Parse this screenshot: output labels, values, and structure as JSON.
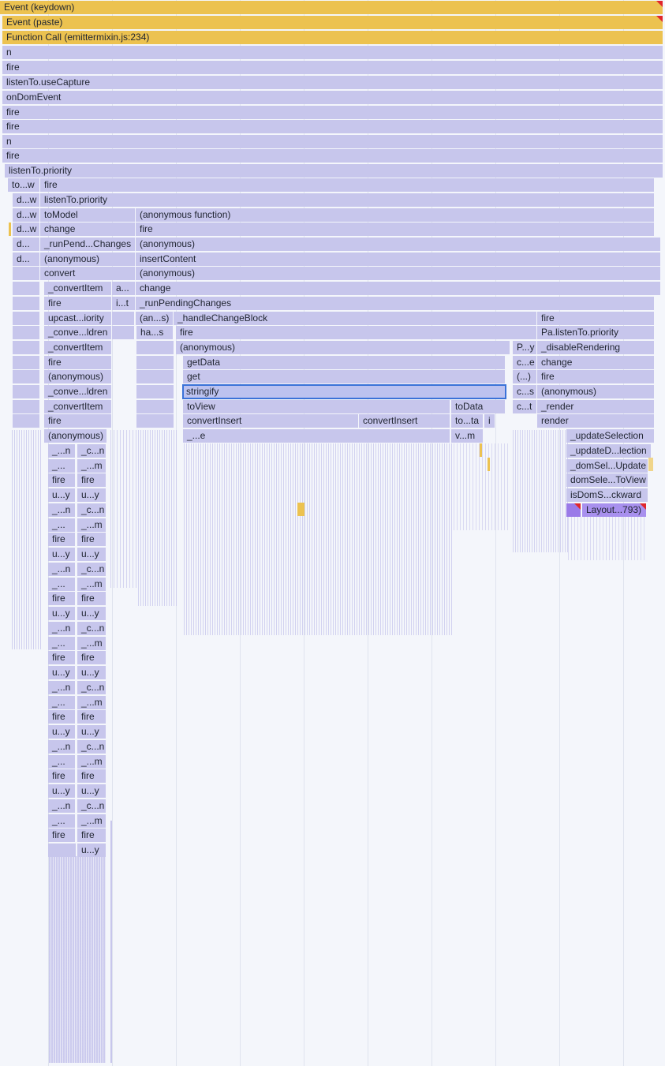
{
  "flame": {
    "events": {
      "keydown": "Event (keydown)",
      "paste": "Event (paste)",
      "function_call": "Function Call (emittermixin.js:234)"
    },
    "rows": {
      "r3": "n",
      "r4": "fire",
      "r5": "listenTo.useCapture",
      "r6": "onDomEvent",
      "r7": "fire",
      "r8": "fire",
      "r9": "n",
      "r10": "fire",
      "r11": "listenTo.priority"
    },
    "c12": {
      "tow": "to...w",
      "fire": "fire"
    },
    "c13": {
      "dw": "d...w",
      "ltp": "listenTo.priority"
    },
    "c14": {
      "dw": "d...w",
      "tomodel": "toModel",
      "anonfn": "(anonymous function)"
    },
    "c15": {
      "dw": "d...w",
      "change": "change",
      "fire": "fire"
    },
    "c16": {
      "d": "d...",
      "runpend": "_runPend...Changes",
      "anon": "(anonymous)"
    },
    "c17": {
      "d": "d...",
      "anon": "(anonymous)",
      "insert": "insertContent"
    },
    "c18": {
      "convert": "convert",
      "anon": "(anonymous)"
    },
    "c19": {
      "convitem": "_convertItem",
      "a": "a...",
      "change": "change"
    },
    "c20": {
      "fire": "fire",
      "it": "i...t",
      "runpending": "_runPendingChanges"
    },
    "c21": {
      "upcast": "upcast...iority",
      "ans": "(an...s)",
      "handle": "_handleChangeBlock",
      "fire": "fire"
    },
    "c22": {
      "convc": "_conve...ldren",
      "has": "ha...s",
      "fire": "fire",
      "palisten": "Pa.listenTo.priority"
    },
    "c23": {
      "convitem": "_convertItem",
      "anon": "(anonymous)",
      "py": "P...y",
      "disable": "_disableRendering"
    },
    "c24": {
      "fire": "fire",
      "getdata": "getData",
      "ce": "c...e",
      "change": "change"
    },
    "c25": {
      "anon": "(anonymous)",
      "get": "get",
      "dots": "(...)",
      "fire": "fire"
    },
    "c26": {
      "convc": "_conve...ldren",
      "stringify": "stringify",
      "cs": "c...s",
      "anon": "(anonymous)"
    },
    "c27": {
      "convitem": "_convertItem",
      "toview": "toView",
      "todata": "toData",
      "ct": "c...t",
      "render": "_render"
    },
    "c28": {
      "fire": "fire",
      "ci1": "convertInsert",
      "ci2": "convertInsert",
      "tota": "to...ta",
      "i": "i",
      "render": "render"
    },
    "c29": {
      "anon": "(anonymous)",
      "e": "_...e",
      "vm": "v...m",
      "updsel": "_updateSelection"
    },
    "c30": {
      "updd": "_updateD...lection"
    },
    "c31": {
      "domsel": "_domSel...Update"
    },
    "c32": {
      "domtov": "domSele...ToView"
    },
    "c33": {
      "isdom": "isDomS...ckward"
    },
    "c34": {
      "layout": "Layout...793)"
    },
    "stack": {
      "n": "_...n",
      "c_n": "_c...n",
      "dots": "_...",
      "m": "_...m",
      "fire": "fire",
      "uy": "u...y",
      "cn": "_c...n"
    }
  }
}
